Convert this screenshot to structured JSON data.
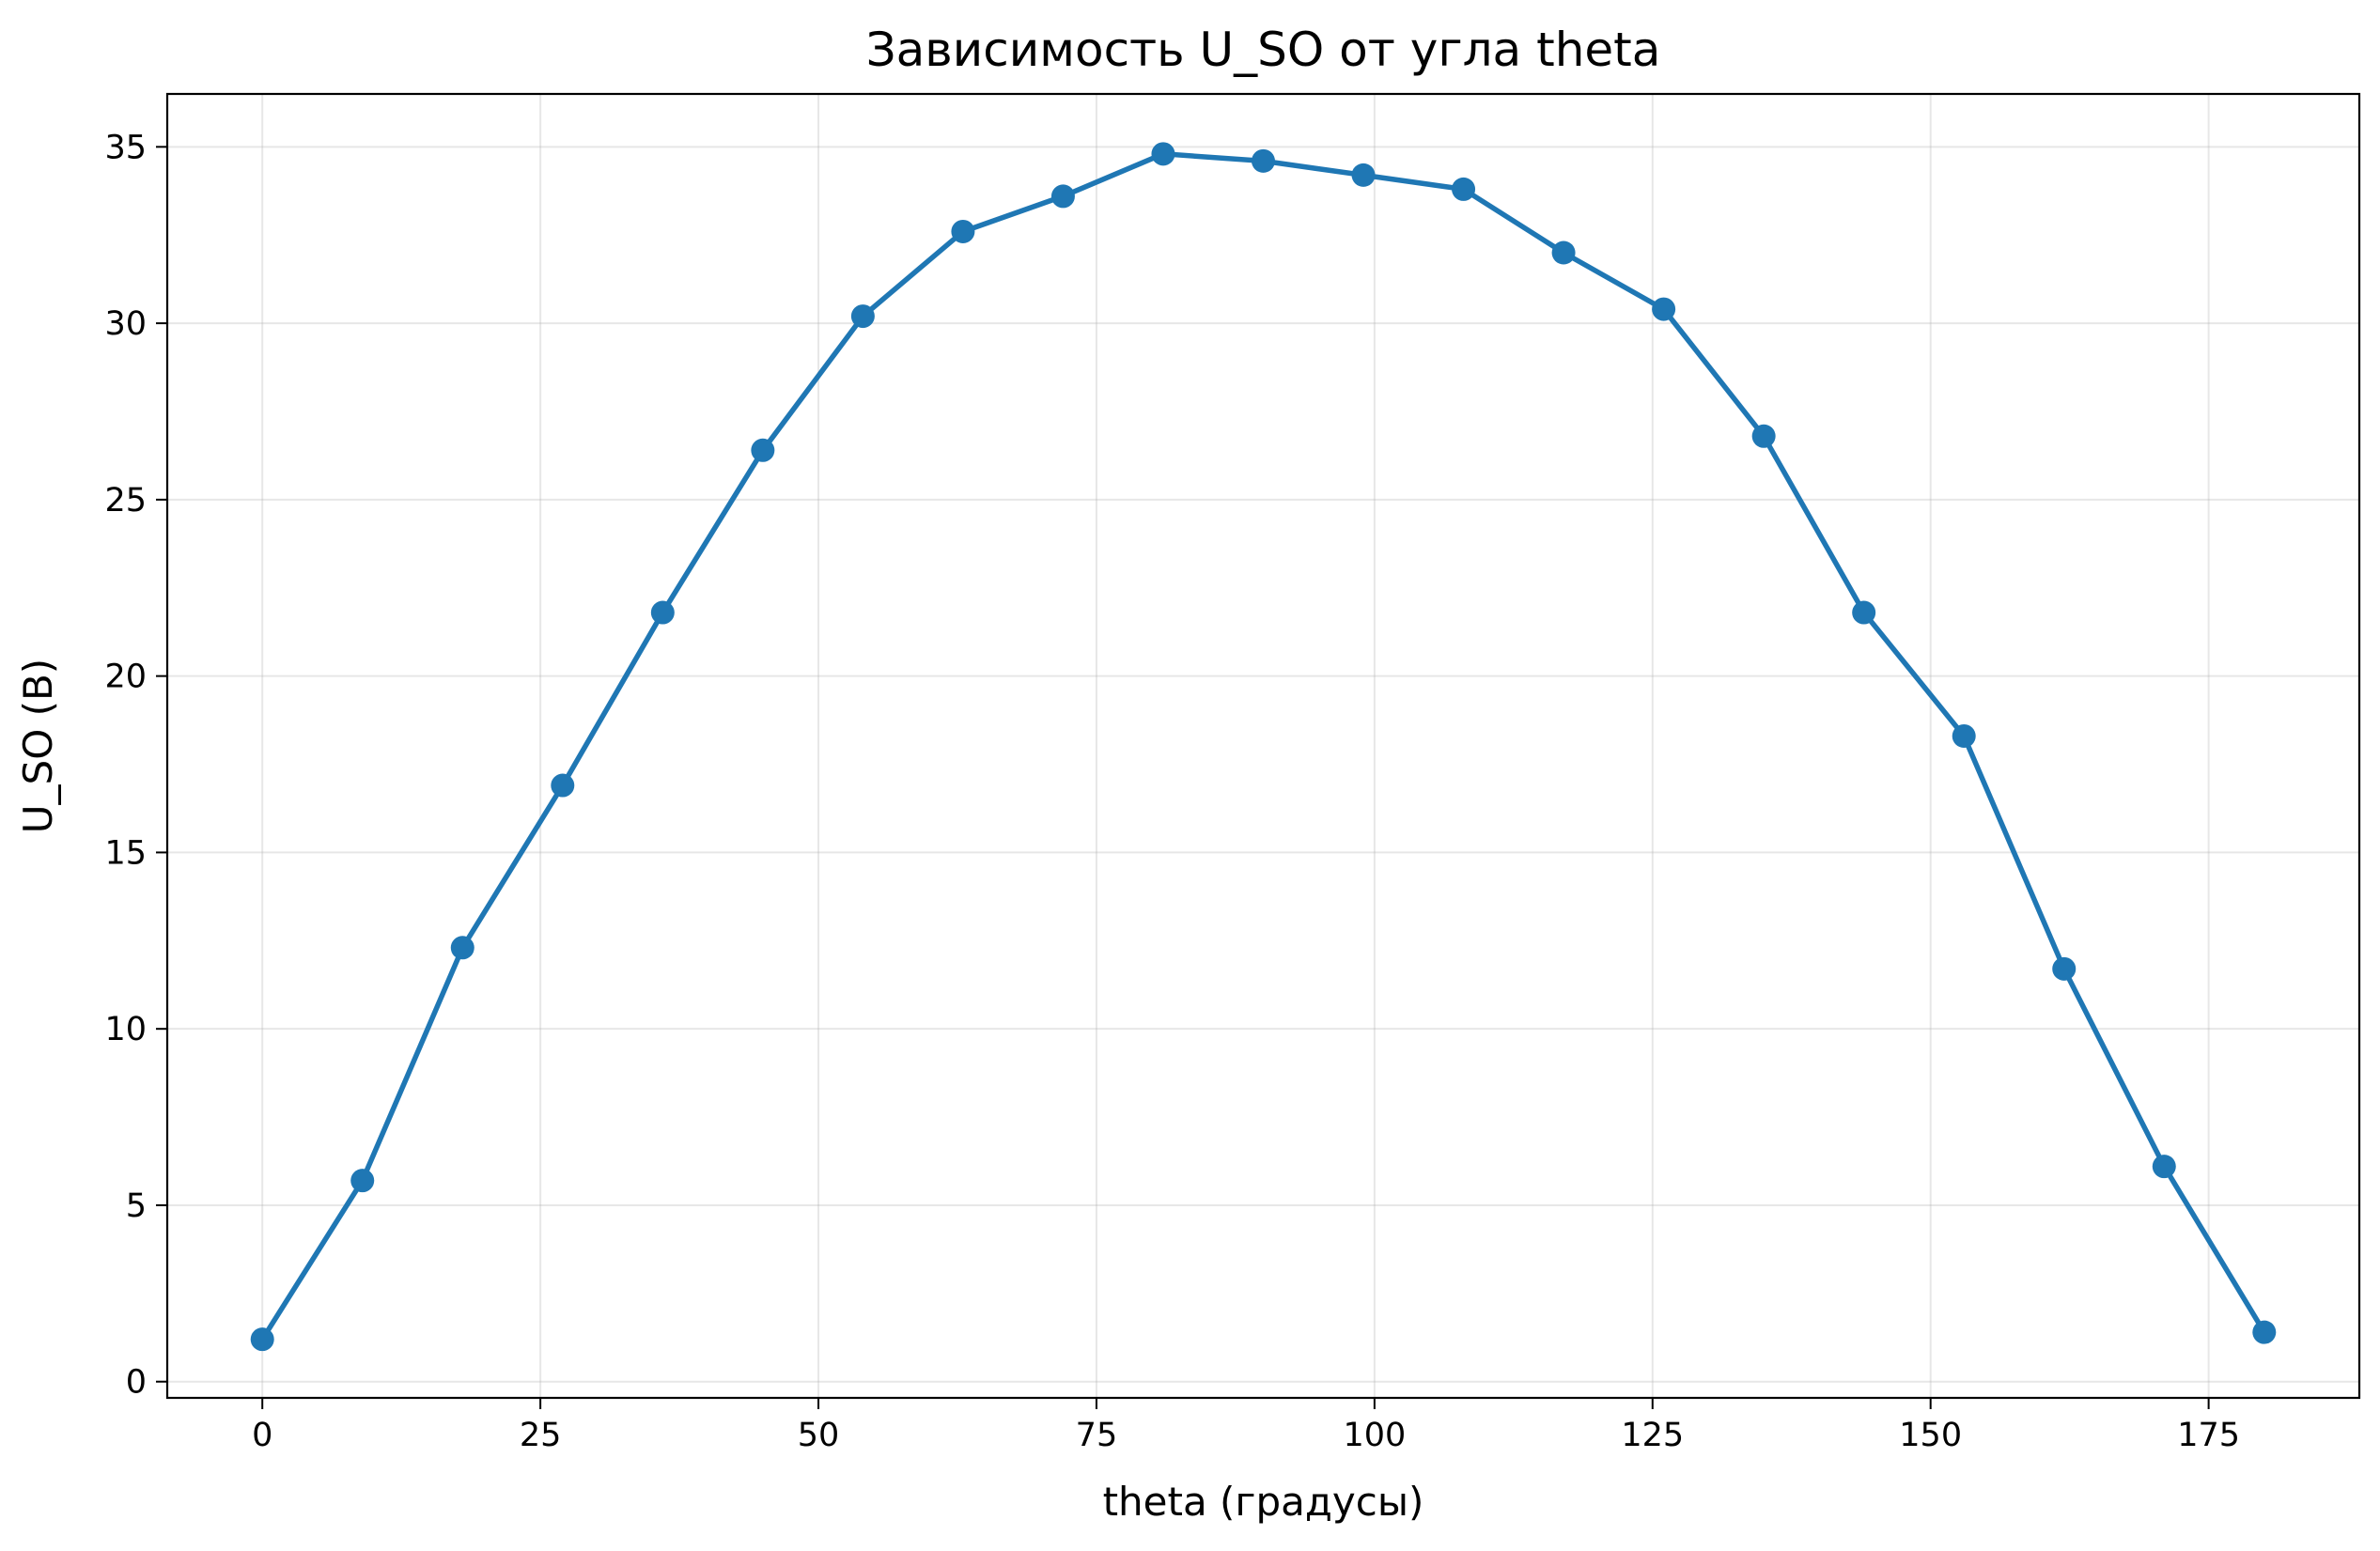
{
  "chart_data": {
    "type": "line",
    "title": "Зависимость U_SO от угла theta",
    "xlabel": "theta (градусы)",
    "ylabel": "U_SO (В)",
    "xlim": [
      -8.55,
      188.55
    ],
    "ylim": [
      -0.46,
      36.5
    ],
    "xticks": [
      0,
      25,
      50,
      75,
      100,
      125,
      150,
      175
    ],
    "yticks": [
      0,
      5,
      10,
      15,
      20,
      25,
      30,
      35
    ],
    "grid": true,
    "line_color": "#1f77b4",
    "marker": "circle",
    "series": [
      {
        "x": [
          0,
          9,
          18,
          27,
          36,
          45,
          54,
          63,
          72,
          81,
          90,
          99,
          108,
          117,
          126,
          135,
          144,
          153,
          162,
          171,
          180
        ],
        "y": [
          1.2,
          5.7,
          12.3,
          16.9,
          21.8,
          26.4,
          30.2,
          32.6,
          33.6,
          34.8,
          34.6,
          34.2,
          33.8,
          32.0,
          30.4,
          26.8,
          21.8,
          18.3,
          11.7,
          6.1,
          1.4
        ]
      }
    ]
  }
}
